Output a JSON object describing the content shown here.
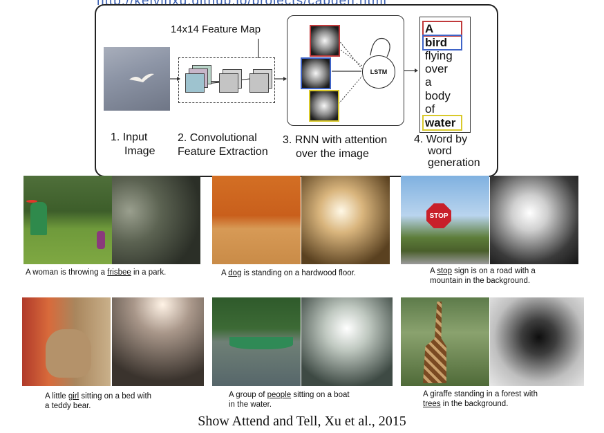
{
  "header_link": "http://kelvinxu.github.io/projects/capgen.html",
  "pipeline": {
    "feature_map_title": "14x14 Feature Map",
    "lstm_label": "LSTM",
    "steps": [
      {
        "line1": "1. Input",
        "line2": "Image"
      },
      {
        "line1": "2. Convolutional",
        "line2": "Feature Extraction"
      },
      {
        "line1": "3. RNN with attention",
        "line2": "over the image"
      },
      {
        "line1": "4. Word by",
        "line2": "word",
        "line3": "generation"
      }
    ],
    "words": [
      "A",
      "bird",
      "flying",
      "over",
      "a",
      "body",
      "of",
      "water"
    ],
    "highlight_colors": {
      "A": "#c0393b",
      "bird": "#3e63c7",
      "water": "#d9c92a"
    }
  },
  "examples": [
    {
      "before": "A woman is throwing a ",
      "keyword": "frisbee",
      "after": " in a park.",
      "line2": ""
    },
    {
      "before": "A ",
      "keyword": "dog",
      "after": " is standing on a hardwood floor.",
      "line2": ""
    },
    {
      "before": "A ",
      "keyword": "stop",
      "after": " sign is on a road with a",
      "line2": "mountain in the background."
    },
    {
      "before": "A little ",
      "keyword": "girl",
      "after": " sitting on a bed with",
      "line2": "a teddy bear."
    },
    {
      "before": "A group of ",
      "keyword": "people",
      "after": " sitting on a boat",
      "line2": "in the water."
    },
    {
      "before": "A giraffe standing in a forest with",
      "keyword": "trees",
      "after": " in the background.",
      "line2_is_keyword_line": true
    }
  ],
  "citation": "Show Attend and Tell, Xu et al., 2015"
}
